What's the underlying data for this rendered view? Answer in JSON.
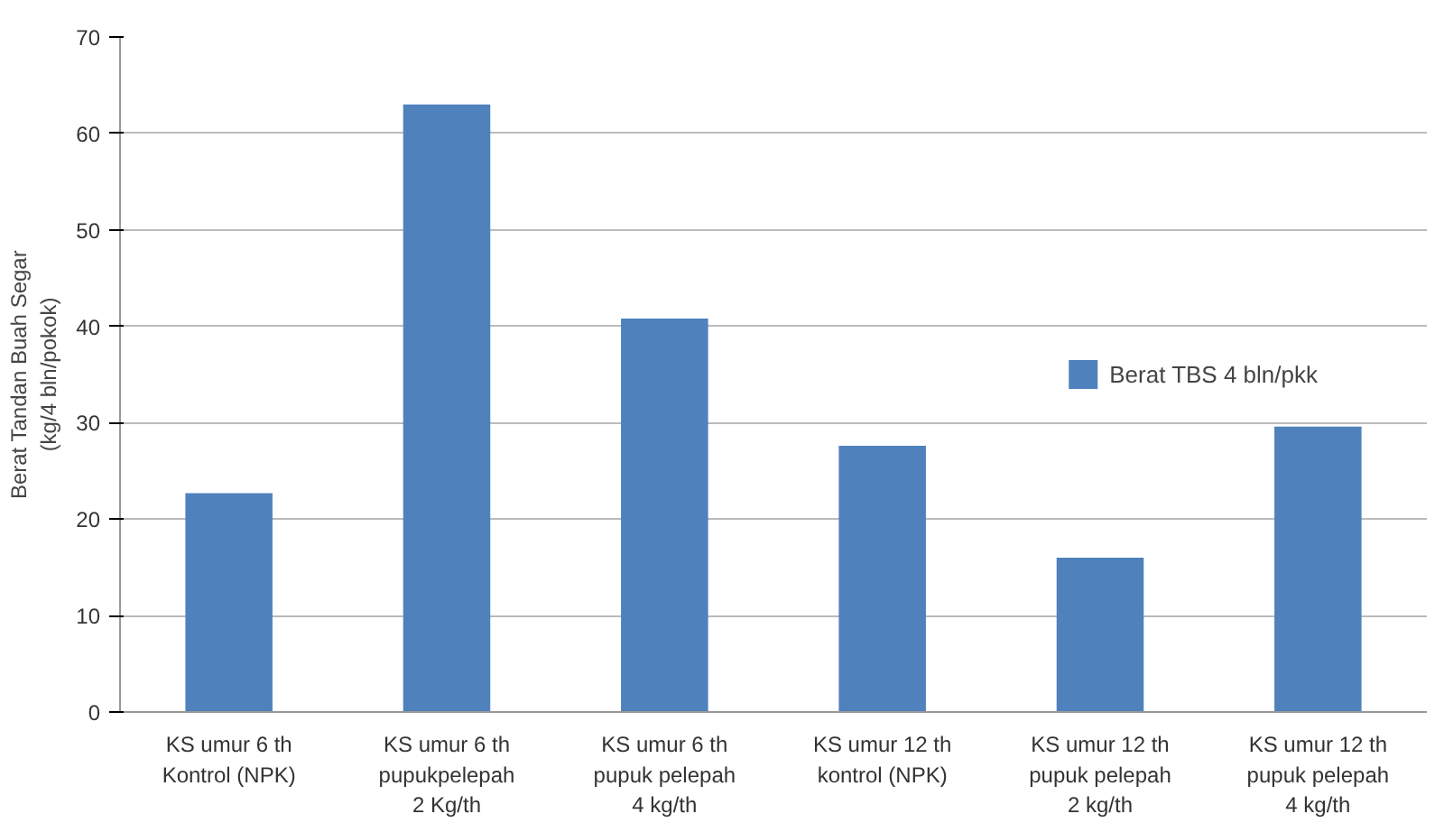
{
  "chart_data": {
    "type": "bar",
    "categories": [
      "KS umur 6 th\nKontrol (NPK)",
      "KS umur 6 th\npupukpelepah\n2 Kg/th",
      "KS umur 6 th\npupuk pelepah\n4 kg/th",
      "KS umur 12 th\nkontrol (NPK)",
      "KS umur 12 th\npupuk pelepah\n2 kg/th",
      "KS umur 12 th\npupuk pelepah\n4 kg/th"
    ],
    "series": [
      {
        "name": "Berat TBS 4 bln/pkk",
        "color": "#4f81bd",
        "values": [
          22.7,
          63.0,
          40.8,
          27.6,
          16.0,
          29.6
        ]
      }
    ],
    "ylabel": "Berat Tandan Buah Segar\n(kg/4 bln/pokok)",
    "ylim": [
      0,
      70
    ],
    "yticks": [
      0,
      10,
      20,
      30,
      40,
      50,
      60,
      70
    ],
    "grid": "y",
    "legend": "right"
  }
}
